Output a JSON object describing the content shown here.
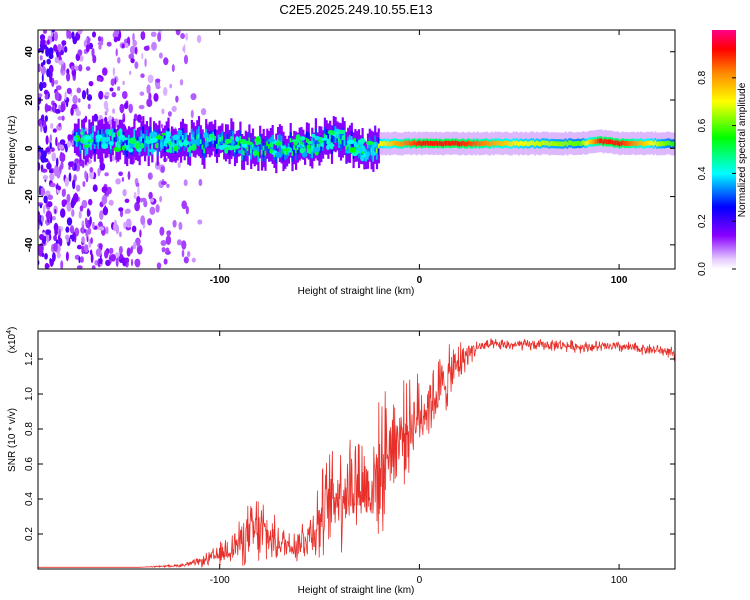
{
  "chart_data": [
    {
      "type": "heatmap",
      "title": "C2E5.2025.249.10.55.E13",
      "xlabel": "Height of straight line (km)",
      "ylabel": "Frequency (Hz)",
      "xlim": [
        -191,
        128
      ],
      "ylim": [
        -50,
        49
      ],
      "x_ticks": [
        -100,
        0,
        100
      ],
      "x_tick_labels": [
        "-100",
        "0",
        "100"
      ],
      "y_ticks": [
        -40,
        -20,
        0,
        20,
        40
      ],
      "y_tick_labels": [
        "-40",
        "-20",
        "0",
        "20",
        "40"
      ],
      "colorbar": {
        "label": "Normalized spectral amplitude",
        "range": [
          0,
          1
        ],
        "ticks": [
          0.0,
          0.2,
          0.4,
          0.6,
          0.8
        ],
        "tick_labels": [
          "0.0",
          "0.2",
          "0.4",
          "0.6",
          "0.8"
        ]
      },
      "ridge": {
        "description": "main spectral line",
        "x": [
          -170,
          -150,
          -130,
          -110,
          -90,
          -70,
          -50,
          -40,
          -30,
          -24,
          -20,
          0,
          20,
          50,
          80,
          90,
          100,
          128
        ],
        "frequency": [
          3,
          3,
          3,
          2,
          1,
          0,
          2,
          4,
          0,
          -1,
          2,
          2,
          2,
          2,
          2,
          3,
          2,
          2
        ],
        "amplitude": [
          0.35,
          0.35,
          0.35,
          0.4,
          0.45,
          0.45,
          0.4,
          0.4,
          0.35,
          0.3,
          0.7,
          0.9,
          0.9,
          0.7,
          0.6,
          0.9,
          0.9,
          0.55
        ]
      }
    },
    {
      "type": "line",
      "xlabel": "Height of straight line (km)",
      "ylabel": "SNR (10 * v/v)",
      "y_multiplier_label": "(x10",
      "y_multiplier_exp": "4",
      "y_multiplier_close": ")",
      "xlim": [
        -191,
        128
      ],
      "ylim": [
        0,
        1.36
      ],
      "x_ticks": [
        -100,
        0,
        100
      ],
      "x_tick_labels": [
        "-100",
        "0",
        "100"
      ],
      "y_ticks": [
        0.2,
        0.4,
        0.6,
        0.8,
        1.0,
        1.2
      ],
      "y_tick_labels": [
        "0.2",
        "0.4",
        "0.6",
        "0.8",
        "1.0",
        "1.2"
      ],
      "series": [
        {
          "name": "SNR",
          "color": "#e8302a",
          "x": [
            -191,
            -160,
            -140,
            -120,
            -110,
            -100,
            -95,
            -90,
            -85,
            -80,
            -75,
            -70,
            -65,
            -60,
            -55,
            -50,
            -45,
            -40,
            -35,
            -30,
            -25,
            -20,
            -15,
            -10,
            -5,
            0,
            5,
            10,
            15,
            20,
            25,
            30,
            35,
            40,
            50,
            60,
            70,
            80,
            90,
            100,
            110,
            120,
            126,
            128
          ],
          "y": [
            0.01,
            0.01,
            0.01,
            0.02,
            0.04,
            0.08,
            0.12,
            0.15,
            0.2,
            0.22,
            0.18,
            0.15,
            0.14,
            0.15,
            0.2,
            0.28,
            0.38,
            0.45,
            0.48,
            0.5,
            0.45,
            0.55,
            0.72,
            0.75,
            0.82,
            0.88,
            0.95,
            1.02,
            1.1,
            1.18,
            1.24,
            1.27,
            1.28,
            1.28,
            1.28,
            1.28,
            1.28,
            1.27,
            1.27,
            1.27,
            1.26,
            1.25,
            1.24,
            1.2
          ],
          "noise": [
            0,
            0,
            0,
            0.01,
            0.03,
            0.08,
            0.12,
            0.15,
            0.22,
            0.28,
            0.18,
            0.12,
            0.12,
            0.15,
            0.18,
            0.3,
            0.34,
            0.4,
            0.4,
            0.4,
            0.32,
            0.45,
            0.4,
            0.35,
            0.3,
            0.28,
            0.25,
            0.25,
            0.2,
            0.15,
            0.08,
            0.05,
            0.04,
            0.04,
            0.04,
            0.04,
            0.04,
            0.04,
            0.04,
            0.04,
            0.04,
            0.04,
            0.04,
            0.04
          ]
        }
      ]
    }
  ]
}
